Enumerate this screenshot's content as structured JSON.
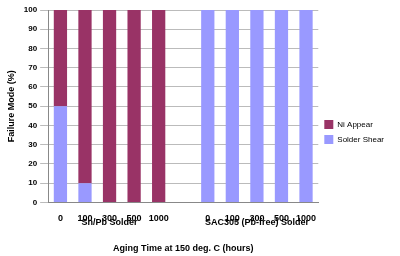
{
  "chart_data": {
    "type": "bar",
    "stacked": true,
    "categories": [
      "0",
      "100",
      "300",
      "500",
      "1000",
      null,
      "0",
      "100",
      "300",
      "500",
      "1000"
    ],
    "groups": [
      "Sn/Pb Solder",
      "SAC305 (Pb-free) Solder"
    ],
    "series": [
      {
        "name": "Solder Shear",
        "color": "#9999ff",
        "values": [
          50,
          10,
          0,
          0,
          0,
          null,
          100,
          100,
          100,
          100,
          100
        ]
      },
      {
        "name": "Ni Appear",
        "color": "#993366",
        "values": [
          50,
          90,
          100,
          100,
          100,
          null,
          0,
          0,
          0,
          0,
          0
        ]
      }
    ],
    "x_label": "Aging Time at 150 deg. C (hours)",
    "y_label": "Failure Mode (%)",
    "ylim": [
      0,
      100
    ],
    "yticks": [
      0,
      10,
      20,
      30,
      40,
      50,
      60,
      70,
      80,
      90,
      100
    ],
    "grid": true,
    "legend": "right"
  }
}
